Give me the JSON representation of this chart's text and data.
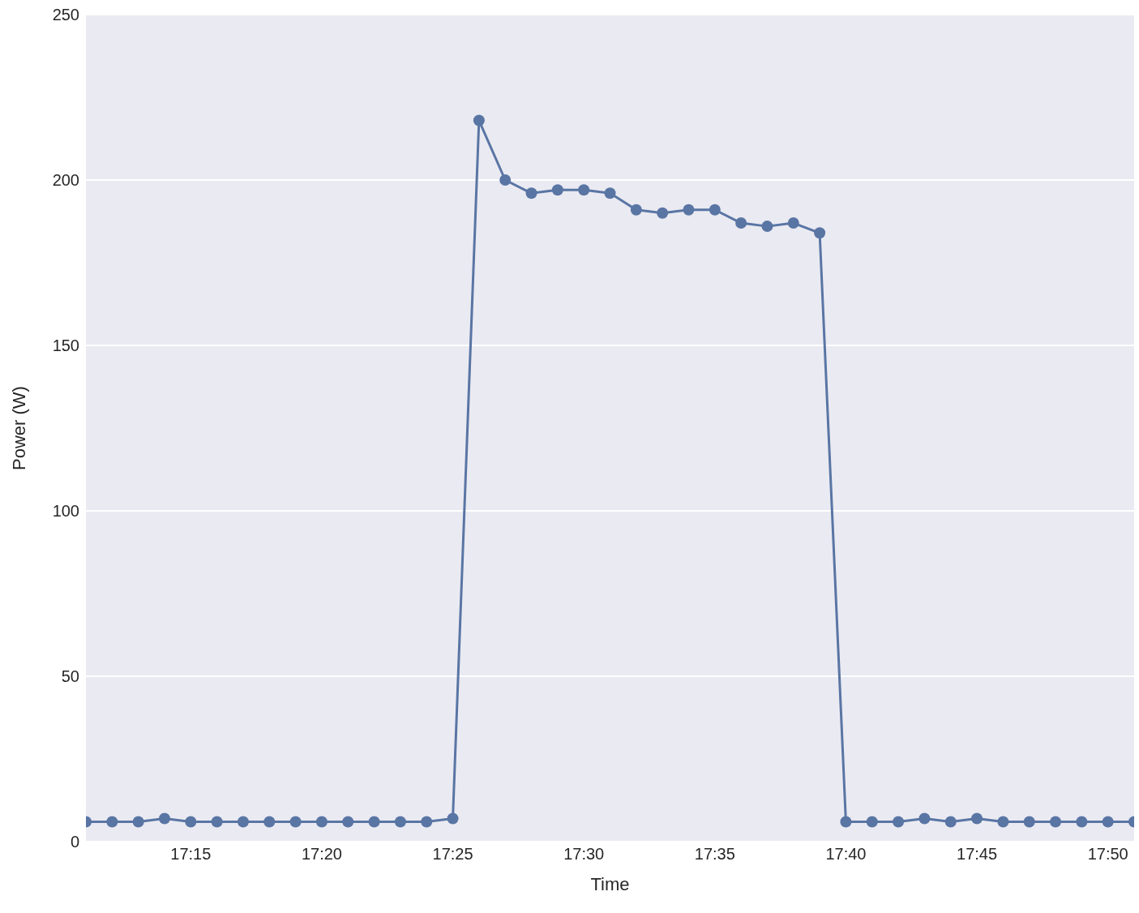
{
  "chart_data": {
    "type": "line",
    "xlabel": "Time",
    "ylabel": "Power (W)",
    "x": [
      17.183333,
      17.2,
      17.216667,
      17.233333,
      17.25,
      17.266667,
      17.283333,
      17.3,
      17.316667,
      17.333333,
      17.35,
      17.366667,
      17.383333,
      17.4,
      17.416667,
      17.433333,
      17.45,
      17.466667,
      17.483333,
      17.5,
      17.516667,
      17.533333,
      17.55,
      17.566667,
      17.583333,
      17.6,
      17.616667,
      17.633333,
      17.65,
      17.666667,
      17.683333,
      17.7,
      17.716667,
      17.733333,
      17.75,
      17.766667,
      17.783333,
      17.8,
      17.816667,
      17.833333,
      17.85
    ],
    "series": [
      {
        "color": "#5975a4",
        "values": [
          6,
          6,
          6,
          7,
          6,
          6,
          6,
          6,
          6,
          6,
          6,
          6,
          6,
          6,
          7,
          218,
          200,
          196,
          197,
          197,
          196,
          191,
          190,
          191,
          191,
          187,
          186,
          187,
          184,
          6,
          6,
          6,
          7,
          6,
          7,
          6,
          6,
          6,
          6,
          6,
          6
        ]
      }
    ],
    "xlim": [
      17.183333,
      17.85
    ],
    "xticks": [
      {
        "value": 17.25,
        "label": "17:15"
      },
      {
        "value": 17.333333,
        "label": "17:20"
      },
      {
        "value": 17.416667,
        "label": "17:25"
      },
      {
        "value": 17.5,
        "label": "17:30"
      },
      {
        "value": 17.583333,
        "label": "17:35"
      },
      {
        "value": 17.666667,
        "label": "17:40"
      },
      {
        "value": 17.75,
        "label": "17:45"
      },
      {
        "value": 17.833333,
        "label": "17:50"
      }
    ],
    "ylim": [
      0,
      250
    ],
    "yticks": [
      0,
      50,
      100,
      150,
      200,
      250
    ],
    "grid": "y",
    "marker": "circle",
    "line_style": "solid",
    "legend": false
  }
}
